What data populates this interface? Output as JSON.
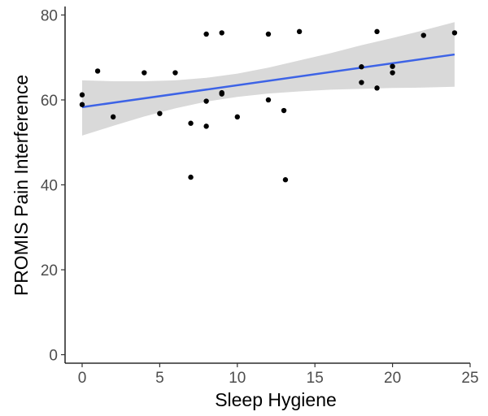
{
  "chart_data": {
    "type": "scatter",
    "title": "",
    "xlabel": "Sleep Hygiene",
    "ylabel": "PROMIS Pain Interference",
    "xlim": [
      -1.1,
      25.0
    ],
    "ylim": [
      -2.0,
      82.0
    ],
    "x_ticks": [
      0,
      5,
      10,
      15,
      20,
      25
    ],
    "y_ticks": [
      0,
      20,
      40,
      60,
      80
    ],
    "grid": false,
    "legend": "none",
    "points": [
      {
        "x": 0,
        "y": 61.2
      },
      {
        "x": 0,
        "y": 58.9
      },
      {
        "x": 1,
        "y": 66.8
      },
      {
        "x": 2,
        "y": 56.0
      },
      {
        "x": 4,
        "y": 66.4
      },
      {
        "x": 5,
        "y": 56.8
      },
      {
        "x": 6,
        "y": 66.4
      },
      {
        "x": 7,
        "y": 54.5
      },
      {
        "x": 7,
        "y": 41.8
      },
      {
        "x": 8,
        "y": 75.5
      },
      {
        "x": 8,
        "y": 59.7
      },
      {
        "x": 8,
        "y": 53.8
      },
      {
        "x": 9,
        "y": 75.8
      },
      {
        "x": 9,
        "y": 61.7
      },
      {
        "x": 9,
        "y": 61.4
      },
      {
        "x": 10,
        "y": 56.0
      },
      {
        "x": 12,
        "y": 75.5
      },
      {
        "x": 12,
        "y": 60.0
      },
      {
        "x": 13,
        "y": 57.5
      },
      {
        "x": 13.1,
        "y": 41.2
      },
      {
        "x": 14,
        "y": 76.1
      },
      {
        "x": 18,
        "y": 67.8
      },
      {
        "x": 18,
        "y": 64.1
      },
      {
        "x": 19,
        "y": 76.1
      },
      {
        "x": 19,
        "y": 62.8
      },
      {
        "x": 20,
        "y": 67.9
      },
      {
        "x": 20,
        "y": 66.4
      },
      {
        "x": 22,
        "y": 75.2
      },
      {
        "x": 24,
        "y": 75.8
      }
    ],
    "fit_line": {
      "x": [
        0,
        24
      ],
      "y": [
        58.3,
        70.7
      ],
      "color": "#3d63e6"
    },
    "confidence_band": {
      "x": [
        0,
        2,
        4,
        6,
        8,
        10,
        12,
        14,
        16,
        18,
        20,
        22,
        24
      ],
      "upper": [
        64.6,
        64.4,
        64.4,
        64.6,
        65.2,
        66.2,
        67.6,
        69.3,
        71.0,
        72.9,
        74.6,
        76.4,
        78.3
      ],
      "lower": [
        51.6,
        53.9,
        56.1,
        58.0,
        59.6,
        60.7,
        61.5,
        62.0,
        62.4,
        62.6,
        62.8,
        62.9,
        63.1
      ],
      "color": "#d9d9d9"
    },
    "point_color": "#000000",
    "axis_color": "#000000"
  }
}
